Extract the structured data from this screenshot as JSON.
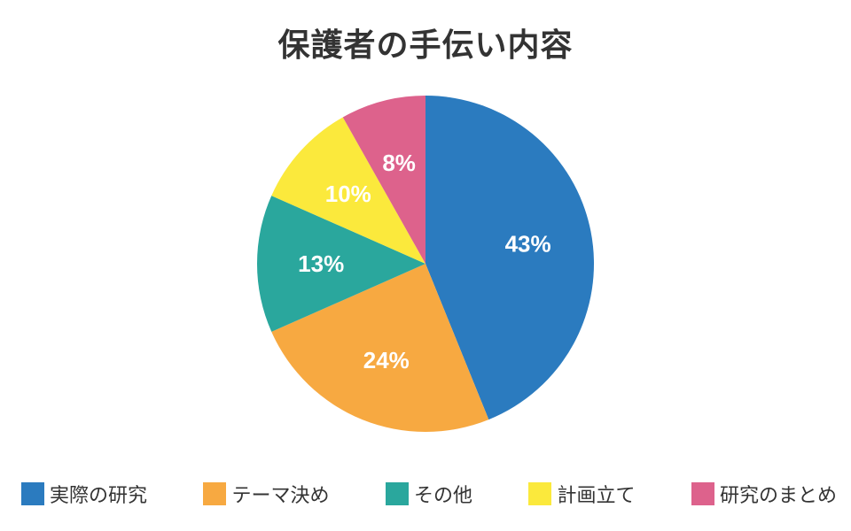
{
  "chart_data": {
    "type": "pie",
    "title": "保護者の手伝い内容",
    "categories": [
      "実際の研究",
      "テーマ決め",
      "その他",
      "計画立て",
      "研究のまとめ"
    ],
    "values": [
      43,
      24,
      13,
      10,
      8
    ],
    "value_labels": [
      "43%",
      "24%",
      "13%",
      "10%",
      "8%"
    ],
    "colors": [
      "#2b7bbf",
      "#f7a941",
      "#2aa79d",
      "#fbe93c",
      "#dd628c"
    ],
    "legend_placement": "bottom"
  }
}
